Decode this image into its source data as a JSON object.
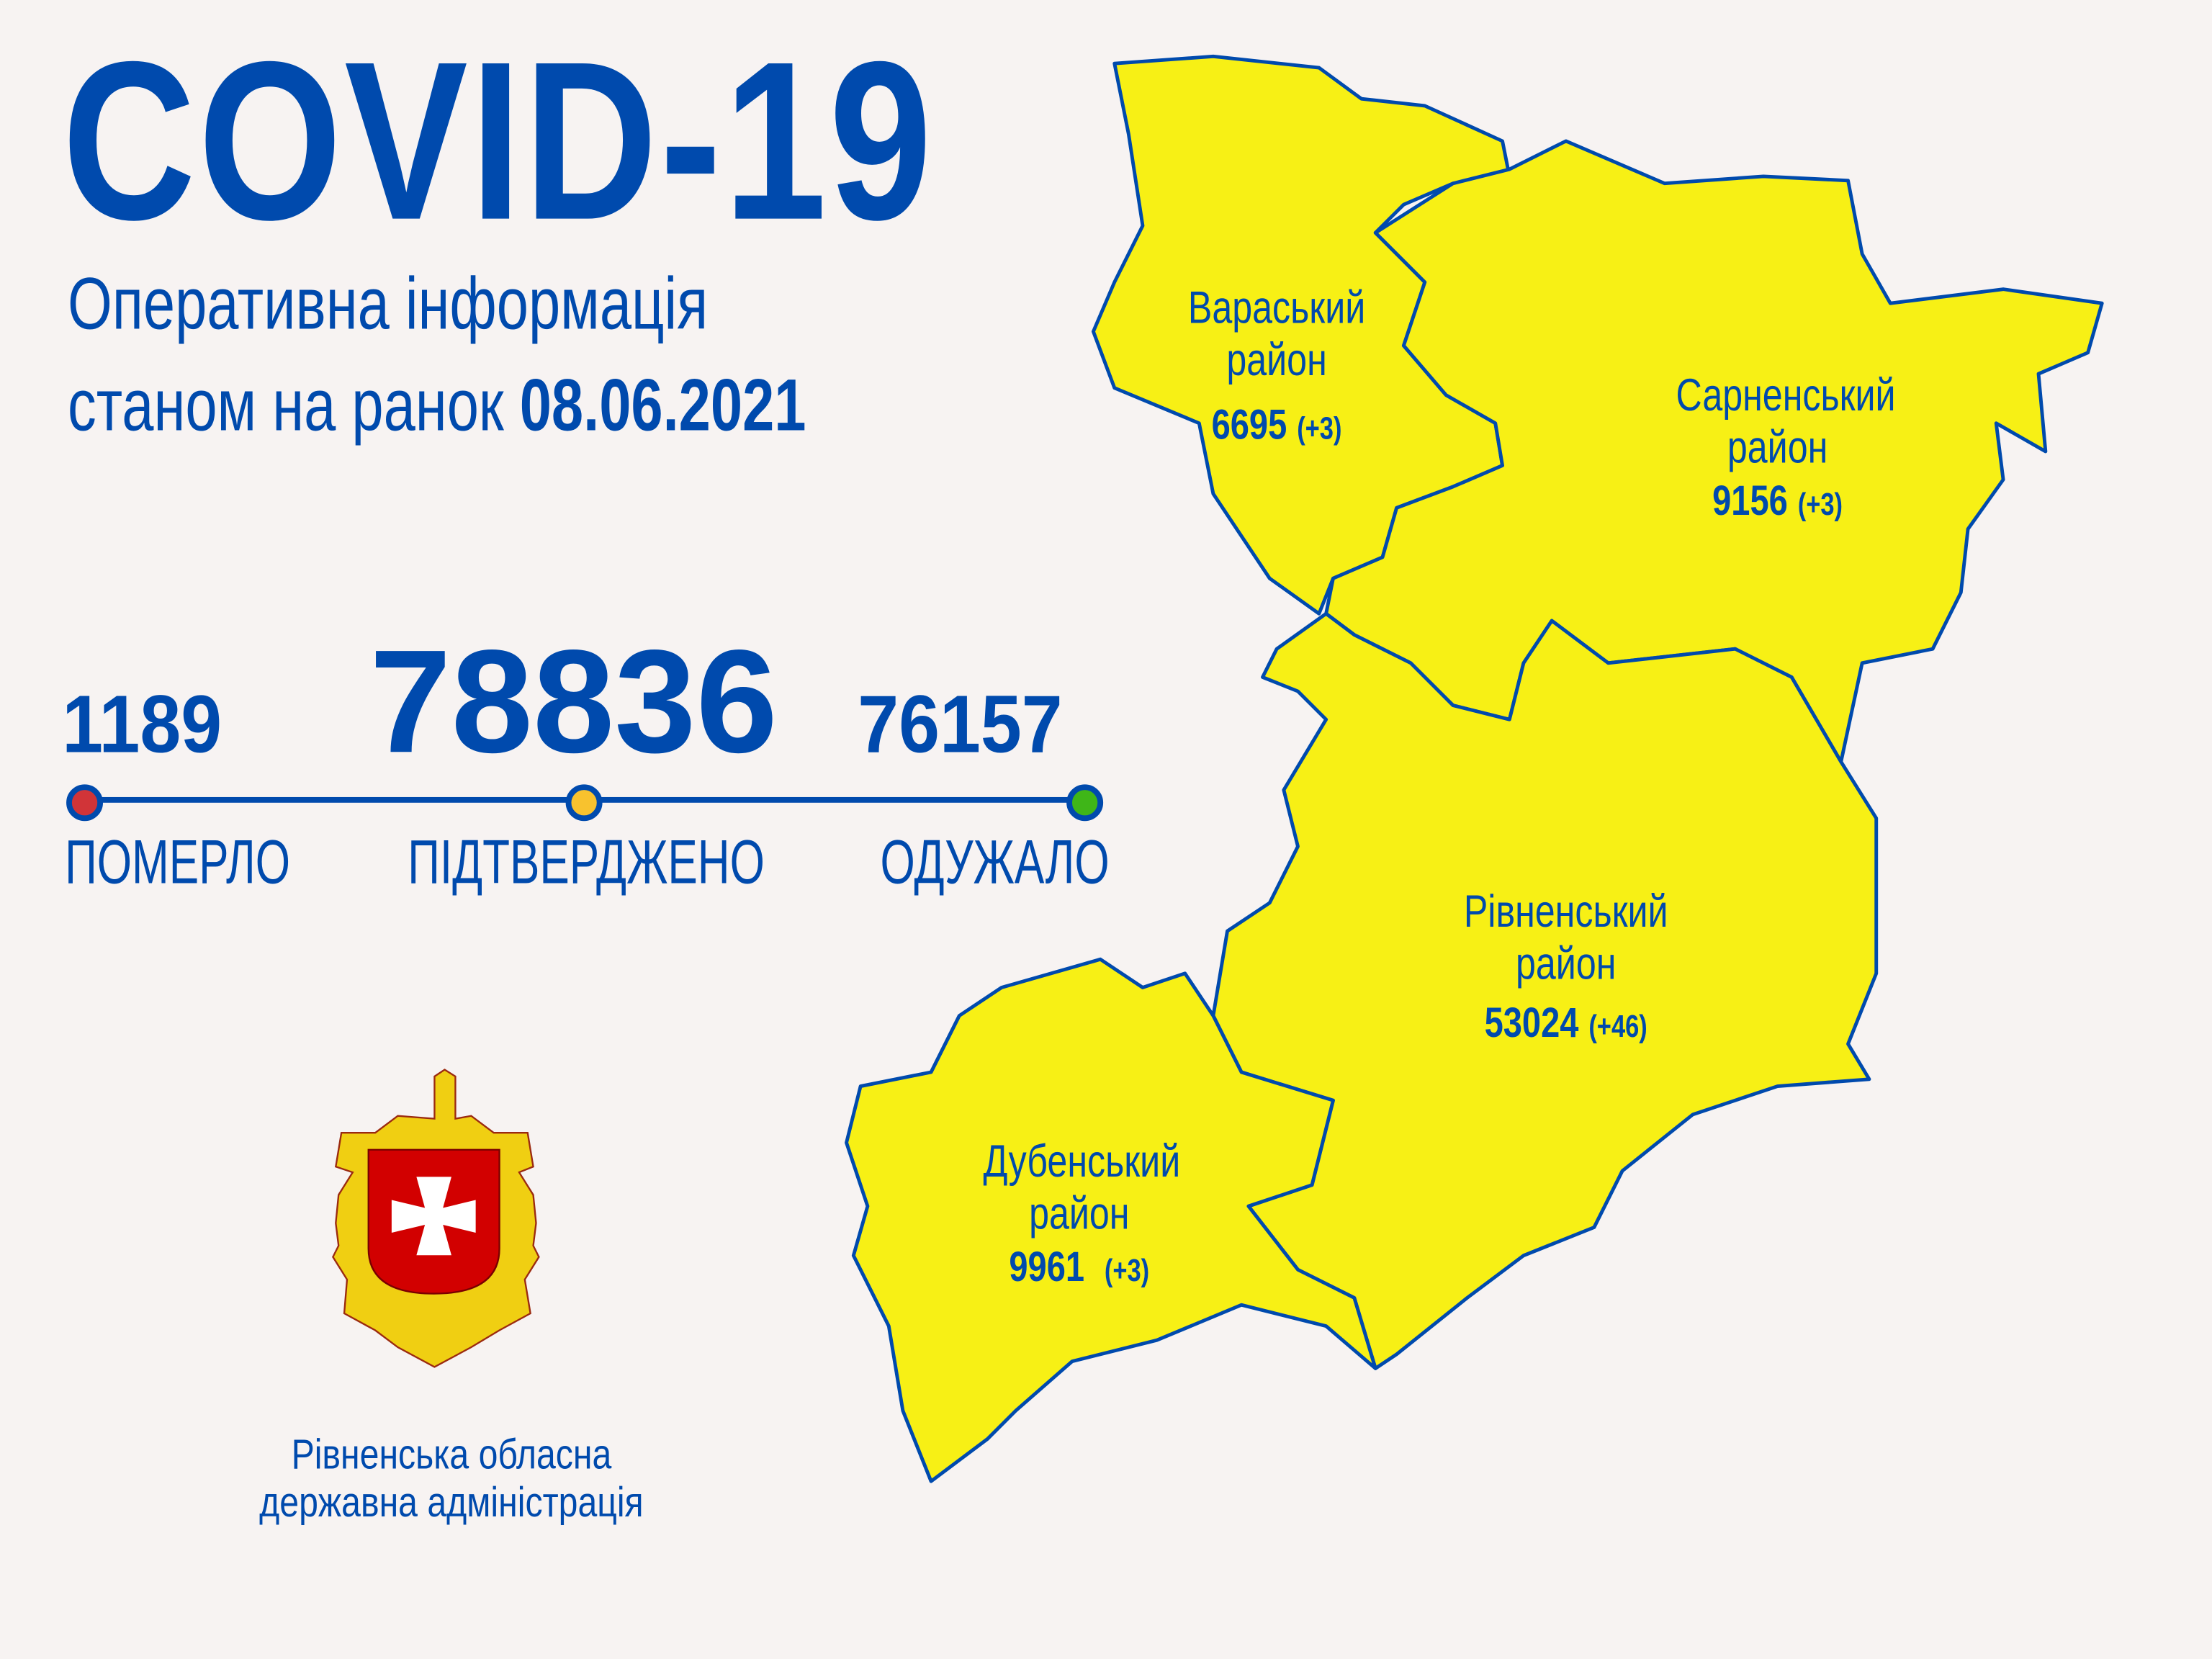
{
  "header": {
    "title": "COVID-19",
    "subtitle_line1": "Оперативна інформація",
    "subtitle_line2_prefix": "станом на ранок",
    "date": "08.06.2021"
  },
  "stats": [
    {
      "value": "1189",
      "label": "ПОМЕРЛО",
      "color": "#d13438"
    },
    {
      "value": "78836",
      "label": "ПІДТВЕРДЖЕНО",
      "color": "#f8c22e"
    },
    {
      "value": "76157",
      "label": "ОДУЖАЛО",
      "color": "#3fb618"
    }
  ],
  "districts": [
    {
      "name_line1": "Вараський",
      "name_line2": "район",
      "total": "6695",
      "delta": "(+3)"
    },
    {
      "name_line1": "Сарненський",
      "name_line2": "район",
      "total": "9156",
      "delta": "(+3)"
    },
    {
      "name_line1": "Рівненський",
      "name_line2": "район",
      "total": "53024",
      "delta": "(+46)"
    },
    {
      "name_line1": "Дубенський",
      "name_line2": "район",
      "total": "9961",
      "delta": "(+3)"
    }
  ],
  "colors": {
    "brand_blue": "#004aad",
    "map_fill": "#f7f015",
    "background": "#f7f3f2"
  },
  "org": {
    "line1": "Рівненська обласна",
    "line2": "державна адміністрація"
  },
  "emblem": "rivne-oblast-coat-of-arms"
}
